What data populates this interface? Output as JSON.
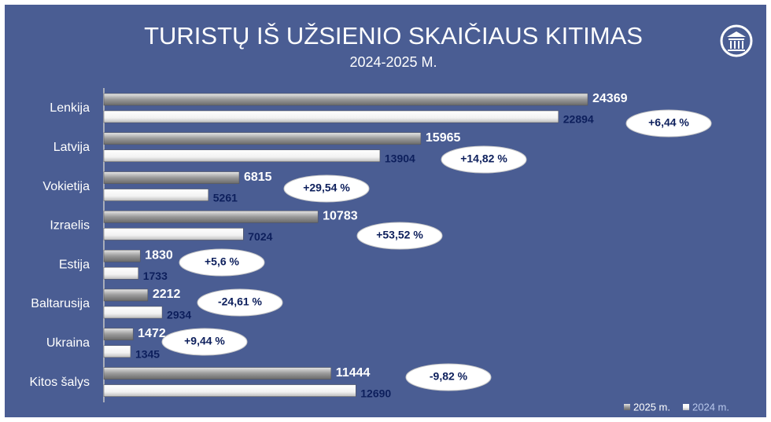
{
  "chart_data": {
    "type": "hbar",
    "title": "TURISTŲ IŠ UŽSIENIO SKAIČIAUS KITIMAS",
    "subtitle": "2024-2025 M.",
    "categories": [
      "Lenkija",
      "Latvija",
      "Vokietija",
      "Izraelis",
      "Estija",
      "Baltarusija",
      "Ukraina",
      "Kitos šalys"
    ],
    "series": [
      {
        "name": "2025 m.",
        "color": "#9a9a9a",
        "values": [
          24369,
          15965,
          6815,
          10783,
          1830,
          2212,
          1472,
          11444
        ]
      },
      {
        "name": "2024 m.",
        "color": "#f2f2f2",
        "values": [
          22894,
          13904,
          5261,
          7024,
          1733,
          2934,
          1345,
          12690
        ]
      }
    ],
    "annotations": [
      "+6,44 %",
      "+14,82 %",
      "+29,54 %",
      "+53,52 %",
      "+5,6 %",
      "-24,61 %",
      "+9,44 %",
      "-9,82 %"
    ],
    "legend": "bottom-right"
  }
}
